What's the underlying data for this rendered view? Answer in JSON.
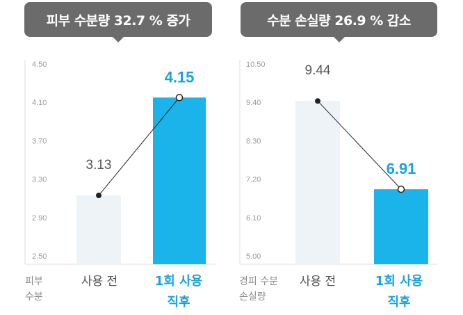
{
  "panels": [
    {
      "banner": "피부 수분량 32.7 % 증가",
      "ylabel": [
        "피부",
        "수분"
      ]
    },
    {
      "banner": "수분 손실량 26.9 % 감소",
      "ylabel": [
        "경피 수분",
        "손실량"
      ]
    }
  ],
  "colors": {
    "before": "#edf3f7",
    "after": "#1bb4ea",
    "accent": "#1aa3dc",
    "banner": "#6b6b6b"
  },
  "chart_data": [
    {
      "type": "bar",
      "categories": [
        "사용 전",
        "1회 사용\n직후"
      ],
      "values": [
        3.13,
        4.15
      ],
      "value_labels": [
        "3.13",
        "4.15"
      ],
      "yticks": [
        "4.50",
        "4.10",
        "3.70",
        "3.30",
        "2.90",
        "2.50"
      ],
      "ylim": [
        2.5,
        4.5
      ],
      "ylabel": "피부 수분",
      "grid": false
    },
    {
      "type": "bar",
      "categories": [
        "사용 전",
        "1회 사용\n직후"
      ],
      "values": [
        9.44,
        6.91
      ],
      "value_labels": [
        "9.44",
        "6.91"
      ],
      "yticks": [
        "10.50",
        "9.40",
        "8.30",
        "7.20",
        "6.10",
        "5.00"
      ],
      "ylim": [
        5.0,
        10.5
      ],
      "ylabel": "경피 수분 손실량",
      "grid": false
    }
  ]
}
